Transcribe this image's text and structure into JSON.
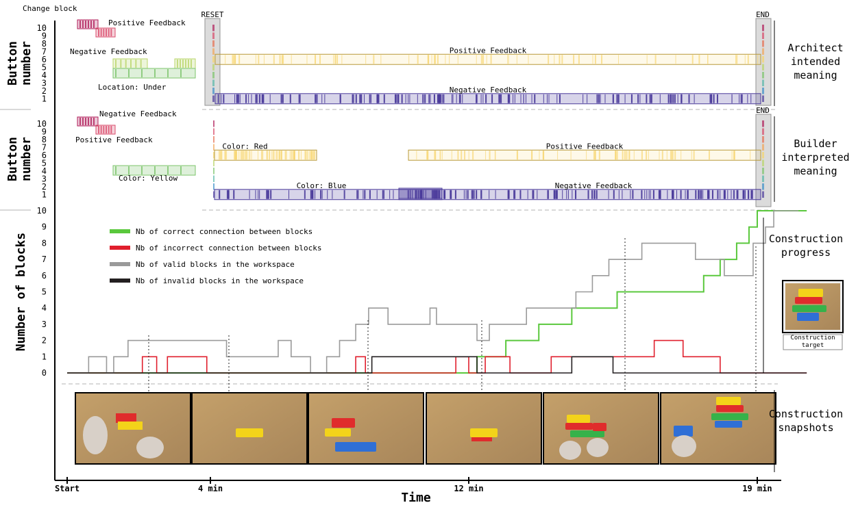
{
  "chart_data": [
    {
      "type": "timeline",
      "panel": "architect",
      "ylabel": "Button number",
      "side_label": [
        "Architect",
        "intended",
        "meaning"
      ],
      "yticks": [
        "1",
        "2",
        "3",
        "4",
        "5",
        "6",
        "7",
        "8",
        "9",
        "10"
      ],
      "markers": [
        "RESET",
        "END"
      ],
      "inset_labels": [
        "Change block",
        "Positive Feedback",
        "Negative Feedback",
        "Location: Under"
      ],
      "bands": [
        {
          "button": 6,
          "label": "Positive Feedback",
          "color": "#f7d46a"
        },
        {
          "button": 1,
          "label": "Negative Feedback",
          "color": "#4b3b9b"
        }
      ]
    },
    {
      "type": "timeline",
      "panel": "builder",
      "ylabel": "Button number",
      "side_label": [
        "Builder",
        "interpreted",
        "meaning"
      ],
      "yticks": [
        "1",
        "2",
        "3",
        "4",
        "5",
        "6",
        "7",
        "8",
        "9",
        "10"
      ],
      "markers": [
        "END"
      ],
      "inset_labels": [
        "Negative Feedback",
        "Positive Feedback",
        "Color: Yellow"
      ],
      "bands": [
        {
          "button": 6,
          "label": "Color: Red",
          "color": "#f7d46a"
        },
        {
          "button": 6,
          "label": "Positive Feedback",
          "color": "#f7d46a"
        },
        {
          "button": 1,
          "label": "Color: Blue",
          "color": "#4b3b9b"
        },
        {
          "button": 1,
          "label": "Negative Feedback",
          "color": "#4b3b9b"
        }
      ]
    },
    {
      "type": "line",
      "panel": "progress",
      "ylabel": "Number of blocks",
      "xlabel": "Time",
      "side_label": [
        "Construction",
        "progress"
      ],
      "ylim": [
        0,
        10
      ],
      "yticks": [
        "0",
        "1",
        "2",
        "3",
        "4",
        "5",
        "6",
        "7",
        "8",
        "9",
        "10"
      ],
      "xticks": [
        {
          "t": 0,
          "label": "Start"
        },
        {
          "t": 4,
          "label": "4 min"
        },
        {
          "t": 12,
          "label": "12 min"
        },
        {
          "t": 19,
          "label": "19 min"
        }
      ],
      "series": [
        {
          "name": "Nb of correct connection between blocks",
          "color": "#5ac83c",
          "points": [
            [
              0,
              0
            ],
            [
              12.2,
              1
            ],
            [
              12.9,
              2
            ],
            [
              13.7,
              3
            ],
            [
              14.5,
              4
            ],
            [
              15.6,
              5
            ],
            [
              16.3,
              5
            ],
            [
              17.7,
              6
            ],
            [
              18.1,
              7
            ],
            [
              18.5,
              8
            ],
            [
              18.8,
              9
            ],
            [
              19.0,
              10
            ],
            [
              20.2,
              10
            ]
          ]
        },
        {
          "name": "Nb of incorrect connection between blocks",
          "color": "#e01f2d",
          "points": [
            [
              0,
              0
            ],
            [
              2.1,
              1
            ],
            [
              2.5,
              0
            ],
            [
              2.8,
              1
            ],
            [
              3.9,
              0
            ],
            [
              8.5,
              1
            ],
            [
              8.8,
              0
            ],
            [
              11.6,
              1
            ],
            [
              12.0,
              0
            ],
            [
              12.4,
              1
            ],
            [
              13.0,
              0
            ],
            [
              14.0,
              1
            ],
            [
              16.5,
              2
            ],
            [
              17.2,
              1
            ],
            [
              18.1,
              0
            ],
            [
              20.2,
              0
            ]
          ]
        },
        {
          "name": "Nb of valid blocks in the workspace",
          "color": "#9a9a9a",
          "points": [
            [
              0,
              0
            ],
            [
              0.6,
              1
            ],
            [
              1.1,
              0
            ],
            [
              1.3,
              1
            ],
            [
              1.7,
              2
            ],
            [
              4.5,
              1
            ],
            [
              6.1,
              2
            ],
            [
              6.5,
              1
            ],
            [
              7.1,
              0
            ],
            [
              7.6,
              1
            ],
            [
              8.0,
              2
            ],
            [
              8.5,
              3
            ],
            [
              8.9,
              4
            ],
            [
              9.5,
              3
            ],
            [
              10.8,
              4
            ],
            [
              11.0,
              3
            ],
            [
              12.2,
              2
            ],
            [
              12.5,
              3
            ],
            [
              13.4,
              4
            ],
            [
              14.6,
              5
            ],
            [
              15.0,
              6
            ],
            [
              15.4,
              7
            ],
            [
              16.2,
              8
            ],
            [
              17.5,
              7
            ],
            [
              18.2,
              6
            ],
            [
              18.9,
              8
            ],
            [
              19.2,
              9
            ],
            [
              19.4,
              10
            ],
            [
              20.0,
              10
            ]
          ]
        },
        {
          "name": "Nb of invalid blocks in the workspace",
          "color": "#231f20",
          "points": [
            [
              0,
              0
            ],
            [
              9.0,
              1
            ],
            [
              12.2,
              0
            ],
            [
              14.5,
              1
            ],
            [
              15.5,
              0
            ],
            [
              20.2,
              0
            ]
          ]
        }
      ]
    }
  ],
  "construction_target_label": [
    "Construction",
    "target"
  ],
  "snapshots_side_label": [
    "Construction",
    "snapshots"
  ]
}
